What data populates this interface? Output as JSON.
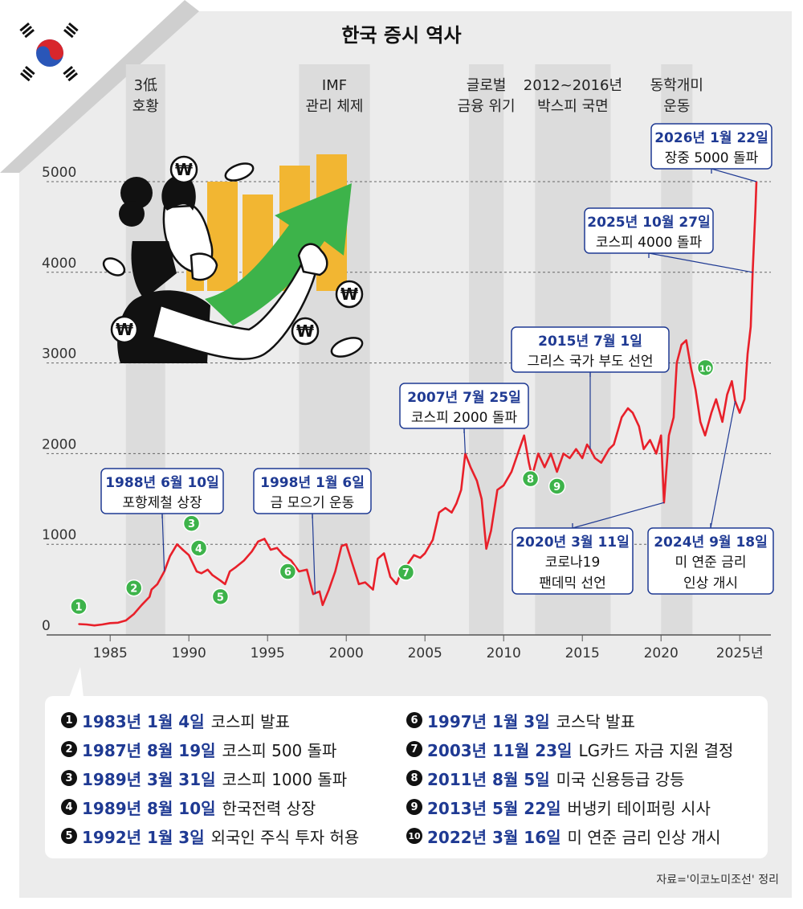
{
  "title": "한국 증시 역사",
  "colors": {
    "line": "#e8202a",
    "accent": "#1f3a93",
    "bg": "#ececec",
    "band": "#dcdcdc",
    "marker": "#3db34a"
  },
  "chart_data": {
    "type": "line",
    "title": "한국 증시 역사",
    "x_tick_labels": [
      "1985",
      "1990",
      "1995",
      "2000",
      "2005",
      "2010",
      "2015",
      "2020",
      "2025년"
    ],
    "y_tick_labels": [
      "0",
      "1000",
      "2000",
      "3000",
      "4000",
      "5000"
    ],
    "xlim": [
      1982.5,
      2026.5
    ],
    "ylim": [
      0,
      5200
    ],
    "grid": "horizontal dashed at 1000, 2000, 3000, 4000, 5000",
    "series": [
      {
        "values": [
          [
            1983.0,
            120
          ],
          [
            1983.5,
            115
          ],
          [
            1984.0,
            105
          ],
          [
            1984.5,
            115
          ],
          [
            1985.0,
            130
          ],
          [
            1985.5,
            135
          ],
          [
            1986.0,
            160
          ],
          [
            1986.5,
            230
          ],
          [
            1987.0,
            330
          ],
          [
            1987.5,
            420
          ],
          [
            1987.63,
            500
          ],
          [
            1988.0,
            560
          ],
          [
            1988.44,
            700
          ],
          [
            1988.8,
            870
          ],
          [
            1989.25,
            1000
          ],
          [
            1989.61,
            940
          ],
          [
            1990.0,
            880
          ],
          [
            1990.5,
            700
          ],
          [
            1990.8,
            680
          ],
          [
            1991.2,
            720
          ],
          [
            1991.5,
            660
          ],
          [
            1992.0,
            600
          ],
          [
            1992.3,
            560
          ],
          [
            1992.6,
            700
          ],
          [
            1993.0,
            750
          ],
          [
            1993.5,
            820
          ],
          [
            1994.0,
            920
          ],
          [
            1994.4,
            1030
          ],
          [
            1994.8,
            1060
          ],
          [
            1995.2,
            940
          ],
          [
            1995.6,
            960
          ],
          [
            1996.0,
            880
          ],
          [
            1996.5,
            820
          ],
          [
            1997.0,
            700
          ],
          [
            1997.5,
            720
          ],
          [
            1997.9,
            450
          ],
          [
            1998.3,
            480
          ],
          [
            1998.5,
            330
          ],
          [
            1998.9,
            500
          ],
          [
            1999.3,
            700
          ],
          [
            1999.7,
            980
          ],
          [
            2000.0,
            1000
          ],
          [
            2000.4,
            780
          ],
          [
            2000.8,
            560
          ],
          [
            2001.2,
            580
          ],
          [
            2001.7,
            500
          ],
          [
            2002.0,
            840
          ],
          [
            2002.4,
            900
          ],
          [
            2002.8,
            640
          ],
          [
            2003.2,
            560
          ],
          [
            2003.5,
            700
          ],
          [
            2003.9,
            780
          ],
          [
            2004.3,
            880
          ],
          [
            2004.7,
            850
          ],
          [
            2005.0,
            900
          ],
          [
            2005.5,
            1050
          ],
          [
            2005.9,
            1350
          ],
          [
            2006.3,
            1400
          ],
          [
            2006.7,
            1350
          ],
          [
            2007.0,
            1450
          ],
          [
            2007.3,
            1600
          ],
          [
            2007.56,
            2000
          ],
          [
            2007.9,
            1850
          ],
          [
            2008.3,
            1700
          ],
          [
            2008.6,
            1500
          ],
          [
            2008.9,
            950
          ],
          [
            2009.2,
            1150
          ],
          [
            2009.6,
            1600
          ],
          [
            2010.0,
            1650
          ],
          [
            2010.5,
            1800
          ],
          [
            2010.9,
            2000
          ],
          [
            2011.3,
            2200
          ],
          [
            2011.6,
            1900
          ],
          [
            2011.8,
            1750
          ],
          [
            2012.2,
            2000
          ],
          [
            2012.6,
            1850
          ],
          [
            2013.0,
            2000
          ],
          [
            2013.39,
            1800
          ],
          [
            2013.8,
            2000
          ],
          [
            2014.2,
            1950
          ],
          [
            2014.6,
            2050
          ],
          [
            2015.0,
            1950
          ],
          [
            2015.3,
            2100
          ],
          [
            2015.5,
            2050
          ],
          [
            2015.8,
            1950
          ],
          [
            2016.2,
            1900
          ],
          [
            2016.7,
            2050
          ],
          [
            2017.0,
            2100
          ],
          [
            2017.5,
            2400
          ],
          [
            2017.9,
            2500
          ],
          [
            2018.2,
            2450
          ],
          [
            2018.6,
            2300
          ],
          [
            2018.9,
            2050
          ],
          [
            2019.3,
            2150
          ],
          [
            2019.7,
            2000
          ],
          [
            2020.0,
            2200
          ],
          [
            2020.19,
            1460
          ],
          [
            2020.5,
            2200
          ],
          [
            2020.8,
            2400
          ],
          [
            2021.0,
            3000
          ],
          [
            2021.3,
            3200
          ],
          [
            2021.6,
            3250
          ],
          [
            2021.9,
            2950
          ],
          [
            2022.2,
            2700
          ],
          [
            2022.5,
            2350
          ],
          [
            2022.8,
            2200
          ],
          [
            2023.2,
            2450
          ],
          [
            2023.5,
            2600
          ],
          [
            2023.9,
            2350
          ],
          [
            2024.2,
            2650
          ],
          [
            2024.5,
            2800
          ],
          [
            2024.71,
            2580
          ],
          [
            2025.0,
            2450
          ],
          [
            2025.3,
            2600
          ],
          [
            2025.5,
            3100
          ],
          [
            2025.7,
            3400
          ],
          [
            2025.82,
            4000
          ],
          [
            2026.0,
            4700
          ],
          [
            2026.06,
            5000
          ]
        ]
      }
    ],
    "bands": [
      {
        "label": "3低\n호황",
        "start": 1986.0,
        "end": 1988.5
      },
      {
        "label": "IMF\n관리 체제",
        "start": 1997.0,
        "end": 2001.5
      },
      {
        "label": "글로벌\n금융 위기",
        "start": 2007.8,
        "end": 2010.0
      },
      {
        "label": "2012~2016년\n박스피 국면",
        "start": 2012.0,
        "end": 2016.8
      },
      {
        "label": "동학개미\n운동",
        "start": 2020.0,
        "end": 2022.0
      }
    ],
    "markers": [
      {
        "num": "1",
        "x": 1983.0,
        "y": 120
      },
      {
        "num": "2",
        "x": 1987.63,
        "y": 500
      },
      {
        "num": "3",
        "x": 1989.25,
        "y": 1000
      },
      {
        "num": "4",
        "x": 1989.61,
        "y": 940
      },
      {
        "num": "5",
        "x": 1992.0,
        "y": 600
      },
      {
        "num": "6",
        "x": 1997.0,
        "y": 700
      },
      {
        "num": "7",
        "x": 2003.89,
        "y": 780
      },
      {
        "num": "8",
        "x": 2011.6,
        "y": 1900
      },
      {
        "num": "9",
        "x": 2013.39,
        "y": 1800
      },
      {
        "num": "10",
        "x": 2022.21,
        "y": 2700
      }
    ],
    "annotations": [
      {
        "date": "1988년 6월 10일",
        "text": "포항제철 상장",
        "x": 1988.44,
        "y": 700
      },
      {
        "date": "1998년 1월 6일",
        "text": "금 모으기 운동",
        "x": 1998.02,
        "y": 450
      },
      {
        "date": "2007년 7월 25일",
        "text": "코스피 2000 돌파",
        "x": 2007.56,
        "y": 2000
      },
      {
        "date": "2015년 7월 1일",
        "text": "그리스 국가 부도 선언",
        "x": 2015.5,
        "y": 2050
      },
      {
        "date": "2020년 3월 11일",
        "text": "코로나19\n팬데믹 선언",
        "x": 2020.19,
        "y": 1460
      },
      {
        "date": "2024년 9월 18일",
        "text": "미 연준 금리\n인상 개시",
        "x": 2024.71,
        "y": 2580
      },
      {
        "date": "2025년 10월 27일",
        "text": "코스피 4000 돌파",
        "x": 2025.82,
        "y": 4000
      },
      {
        "date": "2026년 1월 22일",
        "text": "장중 5000 돌파",
        "x": 2026.06,
        "y": 5000
      }
    ]
  },
  "legend": [
    {
      "num": "1",
      "date": "1983년 1월 4일",
      "text": "코스피 발표"
    },
    {
      "num": "2",
      "date": "1987년 8월 19일",
      "text": "코스피 500 돌파"
    },
    {
      "num": "3",
      "date": "1989년 3월 31일",
      "text": "코스피 1000 돌파"
    },
    {
      "num": "4",
      "date": "1989년 8월 10일",
      "text": "한국전력 상장"
    },
    {
      "num": "5",
      "date": "1992년 1월 3일",
      "text": "외국인 주식 투자 허용"
    },
    {
      "num": "6",
      "date": "1997년 1월 3일",
      "text": "코스닥 발표"
    },
    {
      "num": "7",
      "date": "2003년 11월 23일",
      "text": "LG카드 자금 지원 결정"
    },
    {
      "num": "8",
      "date": "2011년 8월 5일",
      "text": "미국 신용등급 강등"
    },
    {
      "num": "9",
      "date": "2013년 5월 22일",
      "text": "버냉키 테이퍼링 시사"
    },
    {
      "num": "10",
      "date": "2022년 3월 16일",
      "text": "미 연준 금리 인상 개시"
    }
  ],
  "source": "자료='이코노미조선' 정리",
  "illustration": {
    "coin_symbol": "₩",
    "icons": [
      "korean-flag-icon",
      "thinking-woman-illustration",
      "green-arrow-icon",
      "coin-icon"
    ]
  }
}
